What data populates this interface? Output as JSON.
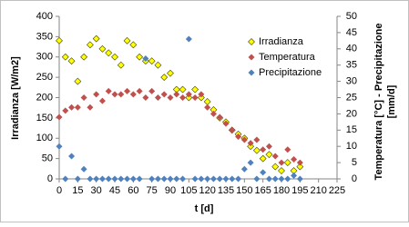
{
  "chart_data": {
    "type": "scatter",
    "x_label": "t [d]",
    "y_label": "Irradianza [W/m2]",
    "y2_label": [
      "Temperatura [°C] - Precipitazione",
      "[mm/d]"
    ],
    "x": [
      0,
      5,
      10,
      15,
      20,
      25,
      30,
      35,
      40,
      45,
      50,
      55,
      60,
      65,
      70,
      75,
      80,
      85,
      90,
      95,
      100,
      105,
      110,
      115,
      120,
      125,
      130,
      135,
      140,
      145,
      150,
      155,
      160,
      165,
      170,
      175,
      180,
      185,
      190,
      195
    ],
    "series": [
      {
        "name": "Irradianza",
        "color": "#ffff00",
        "axis": "y",
        "values": [
          340,
          300,
          290,
          240,
          300,
          330,
          345,
          320,
          310,
          300,
          280,
          340,
          330,
          300,
          290,
          290,
          280,
          250,
          260,
          220,
          220,
          200,
          220,
          200,
          190,
          170,
          150,
          140,
          120,
          110,
          100,
          80,
          70,
          50,
          60,
          30,
          20,
          40,
          20,
          30
        ]
      },
      {
        "name": "Temperatura",
        "color": "#c0504d",
        "axis": "y2",
        "values": [
          19,
          21,
          22,
          22,
          25,
          22,
          26,
          24,
          27,
          26,
          26,
          27,
          26,
          27,
          25,
          27,
          25,
          26,
          25,
          26,
          25,
          26,
          25,
          26,
          22,
          20,
          19,
          17,
          15,
          13,
          12,
          11,
          12,
          9,
          10,
          7,
          5,
          9,
          6,
          5
        ]
      },
      {
        "name": "Precipitazione",
        "color": "#4f81bd",
        "axis": "y2",
        "values": [
          10,
          0,
          7,
          0,
          3,
          0,
          0,
          0,
          0,
          0,
          0,
          0,
          0,
          0,
          37,
          0,
          0,
          0,
          0,
          0,
          0,
          43,
          0,
          0,
          0,
          0,
          0,
          0,
          0,
          0,
          3,
          5,
          0,
          2,
          0,
          0,
          0,
          0,
          1,
          0
        ]
      }
    ],
    "xlim": [
      0,
      225
    ],
    "xticks": [
      0,
      15,
      30,
      45,
      60,
      75,
      90,
      105,
      120,
      135,
      150,
      165,
      180,
      195,
      210,
      225
    ],
    "ylim": [
      0,
      400
    ],
    "yticks": [
      0,
      50,
      100,
      150,
      200,
      250,
      300,
      350,
      400
    ],
    "y2lim": [
      0,
      50
    ],
    "y2ticks": [
      0,
      5,
      10,
      15,
      20,
      25,
      30,
      35,
      40,
      45,
      50
    ],
    "legend": "upper right"
  }
}
